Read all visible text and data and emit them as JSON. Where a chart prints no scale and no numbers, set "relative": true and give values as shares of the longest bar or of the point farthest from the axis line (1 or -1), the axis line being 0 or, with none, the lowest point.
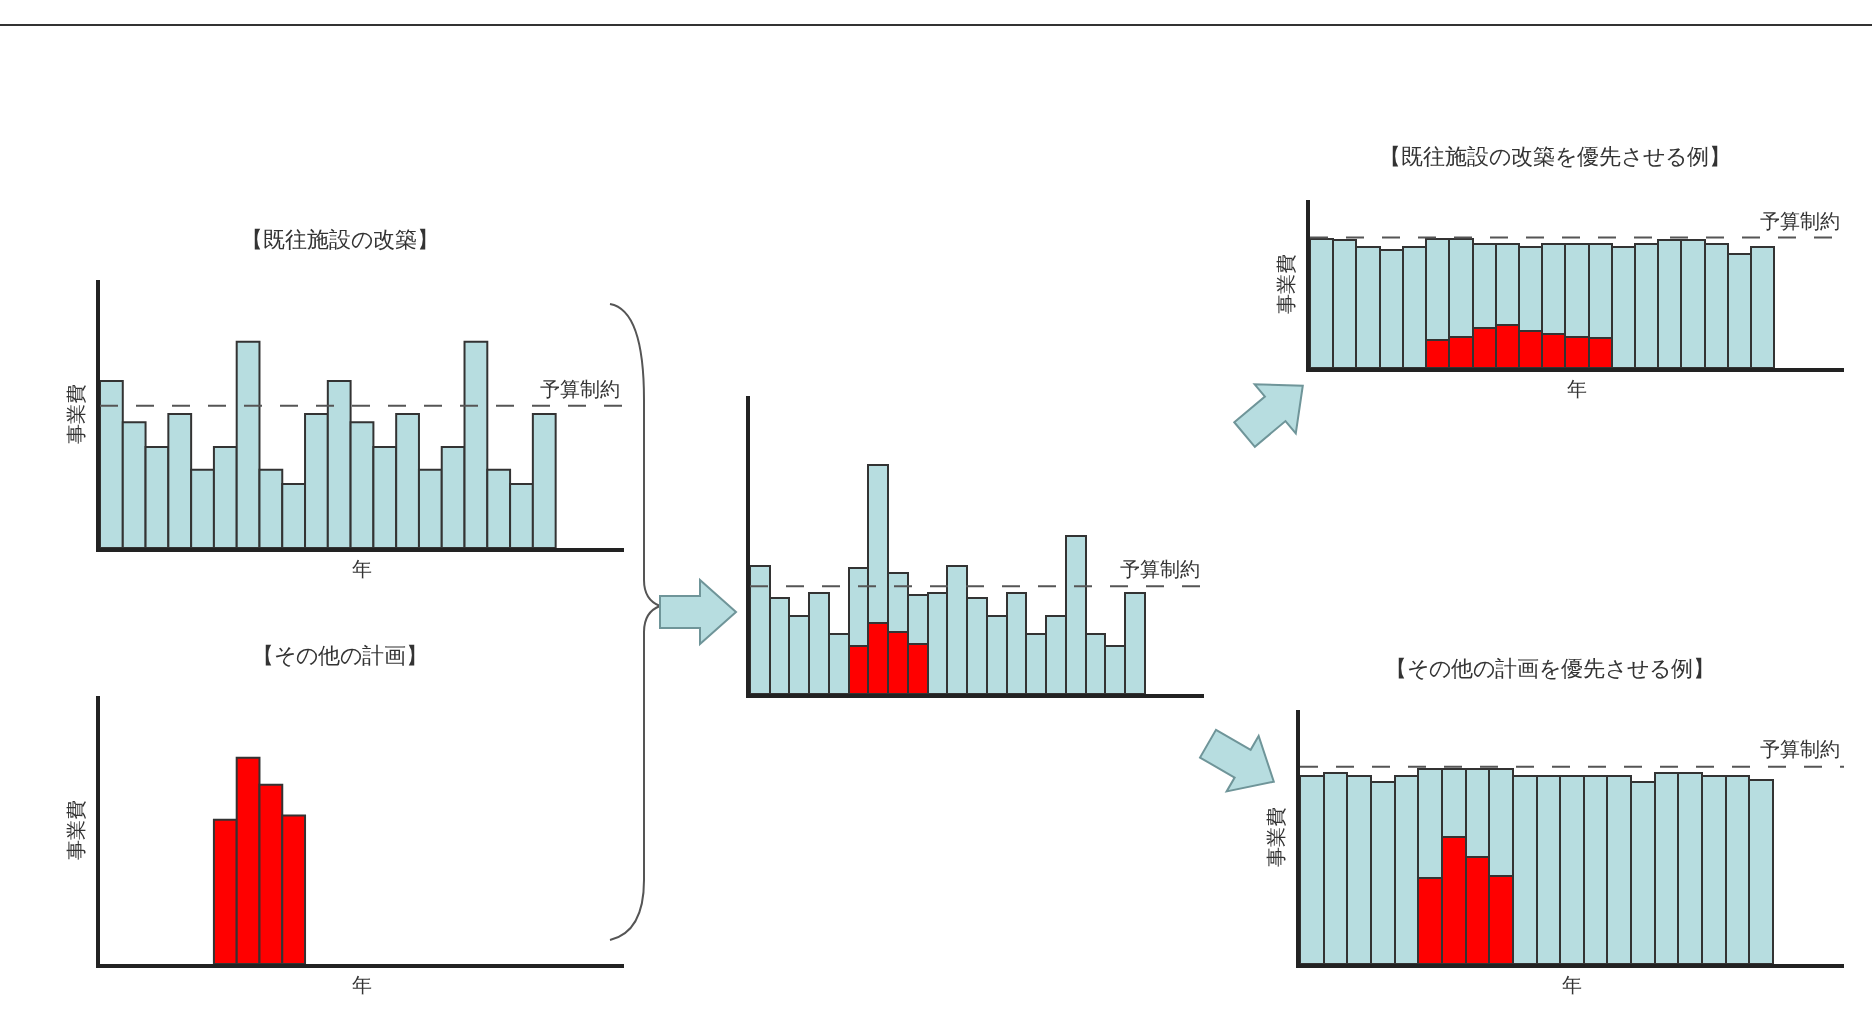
{
  "chart_data": [
    {
      "type": "bar",
      "title": "【既往施設の改築】",
      "xlabel": "年",
      "ylabel": "事業費",
      "relative": true,
      "categories": [
        null,
        null,
        null,
        null,
        null,
        null,
        null,
        null,
        null,
        null,
        null,
        null,
        null,
        null,
        null,
        null,
        null,
        null,
        null,
        null
      ],
      "series": [
        {
          "color": "#b7dde0",
          "values": [
            0.81,
            0.61,
            0.49,
            0.65,
            0.38,
            0.49,
            1,
            0.38,
            0.31,
            0.65,
            0.81,
            0.61,
            0.49,
            0.65,
            0.38,
            0.49,
            1,
            0.38,
            0.31,
            0.65
          ]
        }
      ],
      "ref_lines": [
        {
          "axis": "y",
          "value": 0.69,
          "label": "予算制約",
          "line_style": "dashed"
        }
      ]
    },
    {
      "type": "bar",
      "title": "【その他の計画】",
      "xlabel": "年",
      "ylabel": "事業費",
      "relative": true,
      "categories": [
        null,
        null,
        null,
        null,
        null,
        null,
        null,
        null,
        null,
        null,
        null,
        null,
        null,
        null,
        null,
        null,
        null,
        null,
        null,
        null
      ],
      "series": [
        {
          "color": "#ff0000",
          "values": [
            null,
            null,
            null,
            null,
            null,
            0.7,
            1,
            0.87,
            0.72,
            null,
            null,
            null,
            null,
            null,
            null,
            null,
            null,
            null,
            null,
            null
          ]
        }
      ]
    },
    {
      "type": "bar",
      "relative": true,
      "stacked": true,
      "categories": [
        null,
        null,
        null,
        null,
        null,
        null,
        null,
        null,
        null,
        null,
        null,
        null,
        null,
        null,
        null,
        null,
        null,
        null,
        null,
        null
      ],
      "series": [
        {
          "color": "#ff0000",
          "values": [
            null,
            null,
            null,
            null,
            null,
            0.21,
            0.31,
            0.27,
            0.22,
            null,
            null,
            null,
            null,
            null,
            null,
            null,
            null,
            null,
            null,
            null
          ]
        },
        {
          "color": "#b7dde0",
          "values": [
            0.56,
            0.42,
            0.34,
            0.44,
            0.26,
            0.34,
            0.69,
            0.26,
            0.21,
            0.44,
            0.56,
            0.42,
            0.34,
            0.44,
            0.26,
            0.34,
            0.69,
            0.26,
            0.21,
            0.44
          ]
        }
      ],
      "ref_lines": [
        {
          "axis": "y",
          "value": 0.47,
          "label": "予算制約",
          "line_style": "dashed"
        }
      ]
    },
    {
      "type": "bar",
      "title": "【既往施設の改築を優先させる例】",
      "xlabel": "年",
      "ylabel": "事業費",
      "relative": true,
      "stacked": true,
      "categories": [
        null,
        null,
        null,
        null,
        null,
        null,
        null,
        null,
        null,
        null,
        null,
        null,
        null,
        null,
        null,
        null,
        null,
        null,
        null,
        null
      ],
      "series": [
        {
          "color": "#ff0000",
          "values": [
            null,
            null,
            null,
            null,
            null,
            0.22,
            0.24,
            0.31,
            0.33,
            0.29,
            0.26,
            0.24,
            0.23,
            null,
            null,
            null,
            null,
            null,
            null,
            null
          ]
        },
        {
          "color": "#b7dde0",
          "values": [
            1,
            0.99,
            0.94,
            0.91,
            0.94,
            0.78,
            0.76,
            0.65,
            0.63,
            0.65,
            0.7,
            0.72,
            0.73,
            0.94,
            0.96,
            0.99,
            0.99,
            0.96,
            0.88,
            0.94
          ]
        }
      ],
      "ref_lines": [
        {
          "axis": "y",
          "value": 1.01,
          "label": "予算制約",
          "line_style": "dashed"
        }
      ]
    },
    {
      "type": "bar",
      "title": "【その他の計画を優先させる例】",
      "xlabel": "年",
      "ylabel": "事業費",
      "relative": true,
      "stacked": true,
      "categories": [
        null,
        null,
        null,
        null,
        null,
        null,
        null,
        null,
        null,
        null,
        null,
        null,
        null,
        null,
        null,
        null,
        null,
        null,
        null,
        null
      ],
      "series": [
        {
          "color": "#ff0000",
          "values": [
            null,
            null,
            null,
            null,
            null,
            0.44,
            0.65,
            0.55,
            0.45,
            null,
            null,
            null,
            null,
            null,
            null,
            null,
            null,
            null,
            null,
            null
          ]
        },
        {
          "color": "#b7dde0",
          "values": [
            0.96,
            0.98,
            0.96,
            0.93,
            0.96,
            0.56,
            0.35,
            0.45,
            0.55,
            0.96,
            0.96,
            0.96,
            0.96,
            0.96,
            0.93,
            0.98,
            0.98,
            0.96,
            0.96,
            0.94
          ]
        }
      ],
      "ref_lines": [
        {
          "axis": "y",
          "value": 1.01,
          "label": "予算制約",
          "line_style": "dashed"
        }
      ]
    }
  ]
}
